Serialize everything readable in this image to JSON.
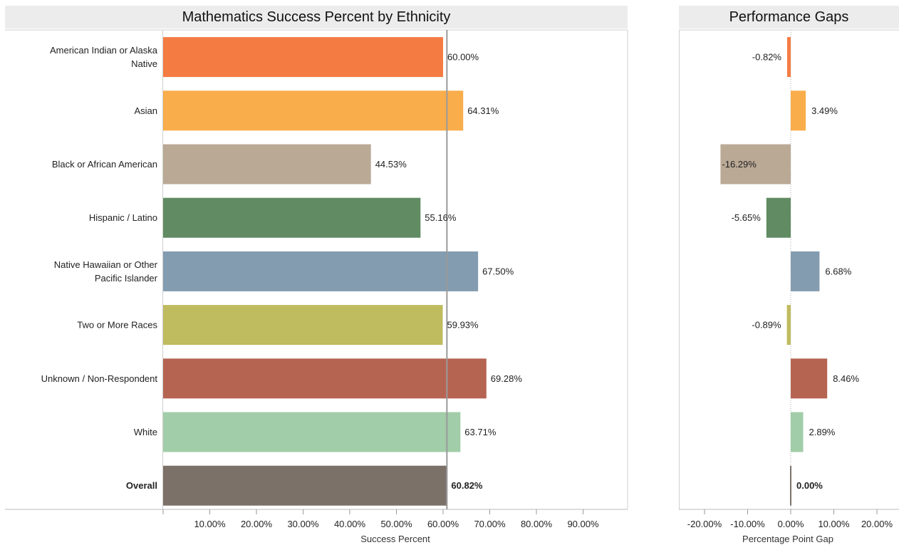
{
  "chart_data": [
    {
      "type": "bar",
      "orientation": "horizontal",
      "title": "Mathematics Success Percent by Ethnicity",
      "xlabel": "Success Percent",
      "xlim": [
        0,
        100
      ],
      "x_ticks": [
        "10.00%",
        "20.00%",
        "30.00%",
        "40.00%",
        "50.00%",
        "60.00%",
        "70.00%",
        "80.00%",
        "90.00%"
      ],
      "reference_line": 60.82,
      "categories": [
        {
          "label": [
            "American Indian or Alaska",
            "Native"
          ],
          "value": 60.0,
          "value_label": "60.00%",
          "color": "#f47c43",
          "bold": false
        },
        {
          "label": [
            "Asian"
          ],
          "value": 64.31,
          "value_label": "64.31%",
          "color": "#f9ad4b",
          "bold": false
        },
        {
          "label": [
            "Black or African American"
          ],
          "value": 44.53,
          "value_label": "44.53%",
          "color": "#baa995",
          "bold": false
        },
        {
          "label": [
            "Hispanic / Latino"
          ],
          "value": 55.16,
          "value_label": "55.16%",
          "color": "#618b63",
          "bold": false
        },
        {
          "label": [
            "Native Hawaiian or Other",
            "Pacific Islander"
          ],
          "value": 67.5,
          "value_label": "67.50%",
          "color": "#849cb0",
          "bold": false
        },
        {
          "label": [
            "Two or More Races"
          ],
          "value": 59.93,
          "value_label": "59.93%",
          "color": "#bfbb5f",
          "bold": false
        },
        {
          "label": [
            "Unknown / Non-Respondent"
          ],
          "value": 69.28,
          "value_label": "69.28%",
          "color": "#b66452",
          "bold": false
        },
        {
          "label": [
            "White"
          ],
          "value": 63.71,
          "value_label": "63.71%",
          "color": "#a1cda8",
          "bold": false
        },
        {
          "label": [
            "Overall"
          ],
          "value": 60.82,
          "value_label": "60.82%",
          "color": "#7b7169",
          "bold": true
        }
      ]
    },
    {
      "type": "bar",
      "orientation": "horizontal",
      "title": "Performance Gaps",
      "xlabel": "Percentage Point Gap",
      "xlim": [
        -25,
        25
      ],
      "x_ticks": [
        "-20.00%",
        "-10.00%",
        "0.00%",
        "10.00%",
        "20.00%"
      ],
      "x_tick_values": [
        -20,
        -10,
        0,
        10,
        20
      ],
      "values": [
        -0.82,
        3.49,
        -16.29,
        -5.65,
        6.68,
        -0.89,
        8.46,
        2.89,
        0.0
      ],
      "value_labels": [
        "-0.82%",
        "3.49%",
        "-16.29%",
        "-5.65%",
        "6.68%",
        "-0.89%",
        "8.46%",
        "2.89%",
        "0.00%"
      ]
    }
  ]
}
